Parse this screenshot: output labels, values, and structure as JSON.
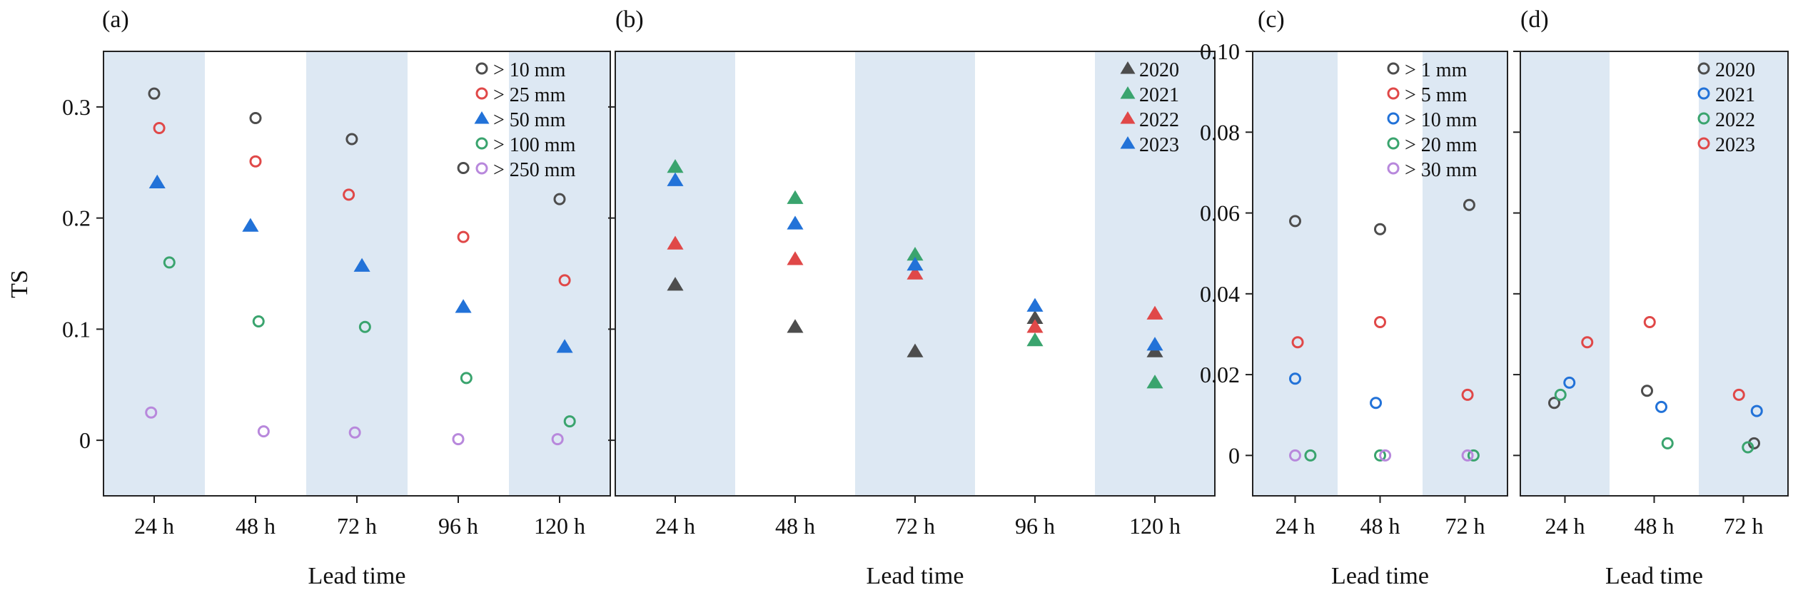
{
  "figure": {
    "ylabel": "TS",
    "xlabel": "Lead time"
  },
  "colors": {
    "band": "#dde8f3",
    "black": "#4d4d4d",
    "red": "#e04848",
    "blue": "#2272d8",
    "green": "#3aa46e",
    "purple": "#b888dc"
  },
  "chart_data": [
    {
      "id": "a",
      "panel_label": "(a)",
      "type": "scatter",
      "categories": [
        "24 h",
        "48 h",
        "72 h",
        "96 h",
        "120 h"
      ],
      "xlabel": "Lead time",
      "ylabel": "TS",
      "ylim": [
        -0.05,
        0.35
      ],
      "yticks": [
        0,
        0.1,
        0.2,
        0.3
      ],
      "ytick_labels": [
        "0",
        "0.1",
        "0.2",
        "0.3"
      ],
      "show_ytick_labels": true,
      "grid": false,
      "legend_position": "top-right",
      "series": [
        {
          "name": "> 10 mm",
          "marker": "circle",
          "color": "black",
          "values": [
            0.312,
            0.29,
            0.271,
            0.245,
            0.217
          ],
          "offsets": [
            0.0,
            0.0,
            -0.05,
            0.05,
            0.0
          ]
        },
        {
          "name": "> 25 mm",
          "marker": "circle",
          "color": "red",
          "values": [
            0.281,
            0.251,
            0.221,
            0.183,
            0.144
          ],
          "offsets": [
            0.05,
            0.0,
            -0.08,
            0.05,
            0.05
          ]
        },
        {
          "name": "> 50 mm",
          "marker": "triangle",
          "color": "blue",
          "values": [
            0.232,
            0.193,
            0.157,
            0.12,
            0.084
          ],
          "offsets": [
            0.03,
            -0.05,
            0.05,
            0.05,
            0.05
          ]
        },
        {
          "name": "> 100 mm",
          "marker": "circle",
          "color": "green",
          "values": [
            0.16,
            0.107,
            0.102,
            0.056,
            0.017
          ],
          "offsets": [
            0.15,
            0.03,
            0.08,
            0.08,
            0.1
          ]
        },
        {
          "name": "> 250 mm",
          "marker": "circle",
          "color": "purple",
          "values": [
            0.025,
            0.008,
            0.007,
            0.001,
            0.001
          ],
          "offsets": [
            -0.03,
            0.08,
            -0.02,
            0.0,
            -0.02
          ]
        }
      ]
    },
    {
      "id": "b",
      "panel_label": "(b)",
      "type": "scatter",
      "categories": [
        "24 h",
        "48 h",
        "72 h",
        "96 h",
        "120 h"
      ],
      "xlabel": "Lead time",
      "ylim": [
        -0.05,
        0.35
      ],
      "yticks": [
        0,
        0.1,
        0.2,
        0.3
      ],
      "show_ytick_labels": false,
      "grid": false,
      "legend_position": "top-right",
      "series": [
        {
          "name": "2020",
          "marker": "triangle",
          "color": "black",
          "values": [
            0.14,
            0.102,
            0.08,
            0.11,
            0.08
          ],
          "offsets": [
            0,
            0,
            0,
            0,
            0
          ]
        },
        {
          "name": "2021",
          "marker": "triangle",
          "color": "green",
          "values": [
            0.246,
            0.218,
            0.167,
            0.09,
            0.052
          ],
          "offsets": [
            0,
            0,
            0,
            0,
            0
          ]
        },
        {
          "name": "2022",
          "marker": "triangle",
          "color": "red",
          "values": [
            0.177,
            0.163,
            0.15,
            0.102,
            0.114
          ],
          "offsets": [
            0,
            0,
            0,
            0,
            0
          ]
        },
        {
          "name": "2023",
          "marker": "triangle",
          "color": "blue",
          "values": [
            0.234,
            0.195,
            0.158,
            0.121,
            0.086
          ],
          "offsets": [
            0,
            0,
            0,
            0,
            0
          ]
        }
      ]
    },
    {
      "id": "c",
      "panel_label": "(c)",
      "type": "scatter",
      "categories": [
        "24 h",
        "48 h",
        "72 h"
      ],
      "xlabel": "Lead time",
      "ylim": [
        -0.01,
        0.1
      ],
      "yticks": [
        0,
        0.02,
        0.04,
        0.06,
        0.08,
        0.1
      ],
      "ytick_labels": [
        "0",
        "0.02",
        "0.04",
        "0.06",
        "0.08",
        "0.10"
      ],
      "show_ytick_labels": true,
      "grid": false,
      "legend_position": "top-right",
      "series": [
        {
          "name": "> 1 mm",
          "marker": "circle",
          "color": "black",
          "values": [
            0.058,
            0.056,
            0.062
          ],
          "offsets": [
            0,
            0,
            0.05
          ]
        },
        {
          "name": "> 5 mm",
          "marker": "circle",
          "color": "red",
          "values": [
            0.028,
            0.033,
            0.015
          ],
          "offsets": [
            0.03,
            0,
            0.03
          ]
        },
        {
          "name": "> 10 mm",
          "marker": "circle",
          "color": "blue",
          "values": [
            0.019,
            0.013,
            null
          ],
          "offsets": [
            0,
            -0.05,
            0
          ]
        },
        {
          "name": "> 20 mm",
          "marker": "circle",
          "color": "green",
          "values": [
            0,
            0,
            0
          ],
          "offsets": [
            0.18,
            0,
            0.1
          ]
        },
        {
          "name": "> 30 mm",
          "marker": "circle",
          "color": "purple",
          "values": [
            0,
            0,
            0
          ],
          "offsets": [
            0,
            0.06,
            0.03
          ]
        }
      ]
    },
    {
      "id": "d",
      "panel_label": "(d)",
      "type": "scatter",
      "categories": [
        "24 h",
        "48 h",
        "72 h"
      ],
      "xlabel": "Lead time",
      "ylim": [
        -0.01,
        0.1
      ],
      "yticks": [
        0,
        0.02,
        0.04,
        0.06,
        0.08,
        0.1
      ],
      "show_ytick_labels": false,
      "grid": false,
      "legend_position": "top-right",
      "series": [
        {
          "name": "2020",
          "marker": "circle",
          "color": "black",
          "values": [
            0.013,
            0.016,
            0.003
          ],
          "offsets": [
            -0.12,
            -0.08,
            0.12
          ]
        },
        {
          "name": "2021",
          "marker": "circle",
          "color": "blue",
          "values": [
            0.018,
            0.012,
            0.011
          ],
          "offsets": [
            0.05,
            0.08,
            0.15
          ]
        },
        {
          "name": "2022",
          "marker": "circle",
          "color": "green",
          "values": [
            0.015,
            0.003,
            0.002
          ],
          "offsets": [
            -0.05,
            0.15,
            0.05
          ]
        },
        {
          "name": "2023",
          "marker": "circle",
          "color": "red",
          "values": [
            0.028,
            0.033,
            0.015
          ],
          "offsets": [
            0.25,
            -0.05,
            -0.05
          ]
        }
      ]
    }
  ]
}
